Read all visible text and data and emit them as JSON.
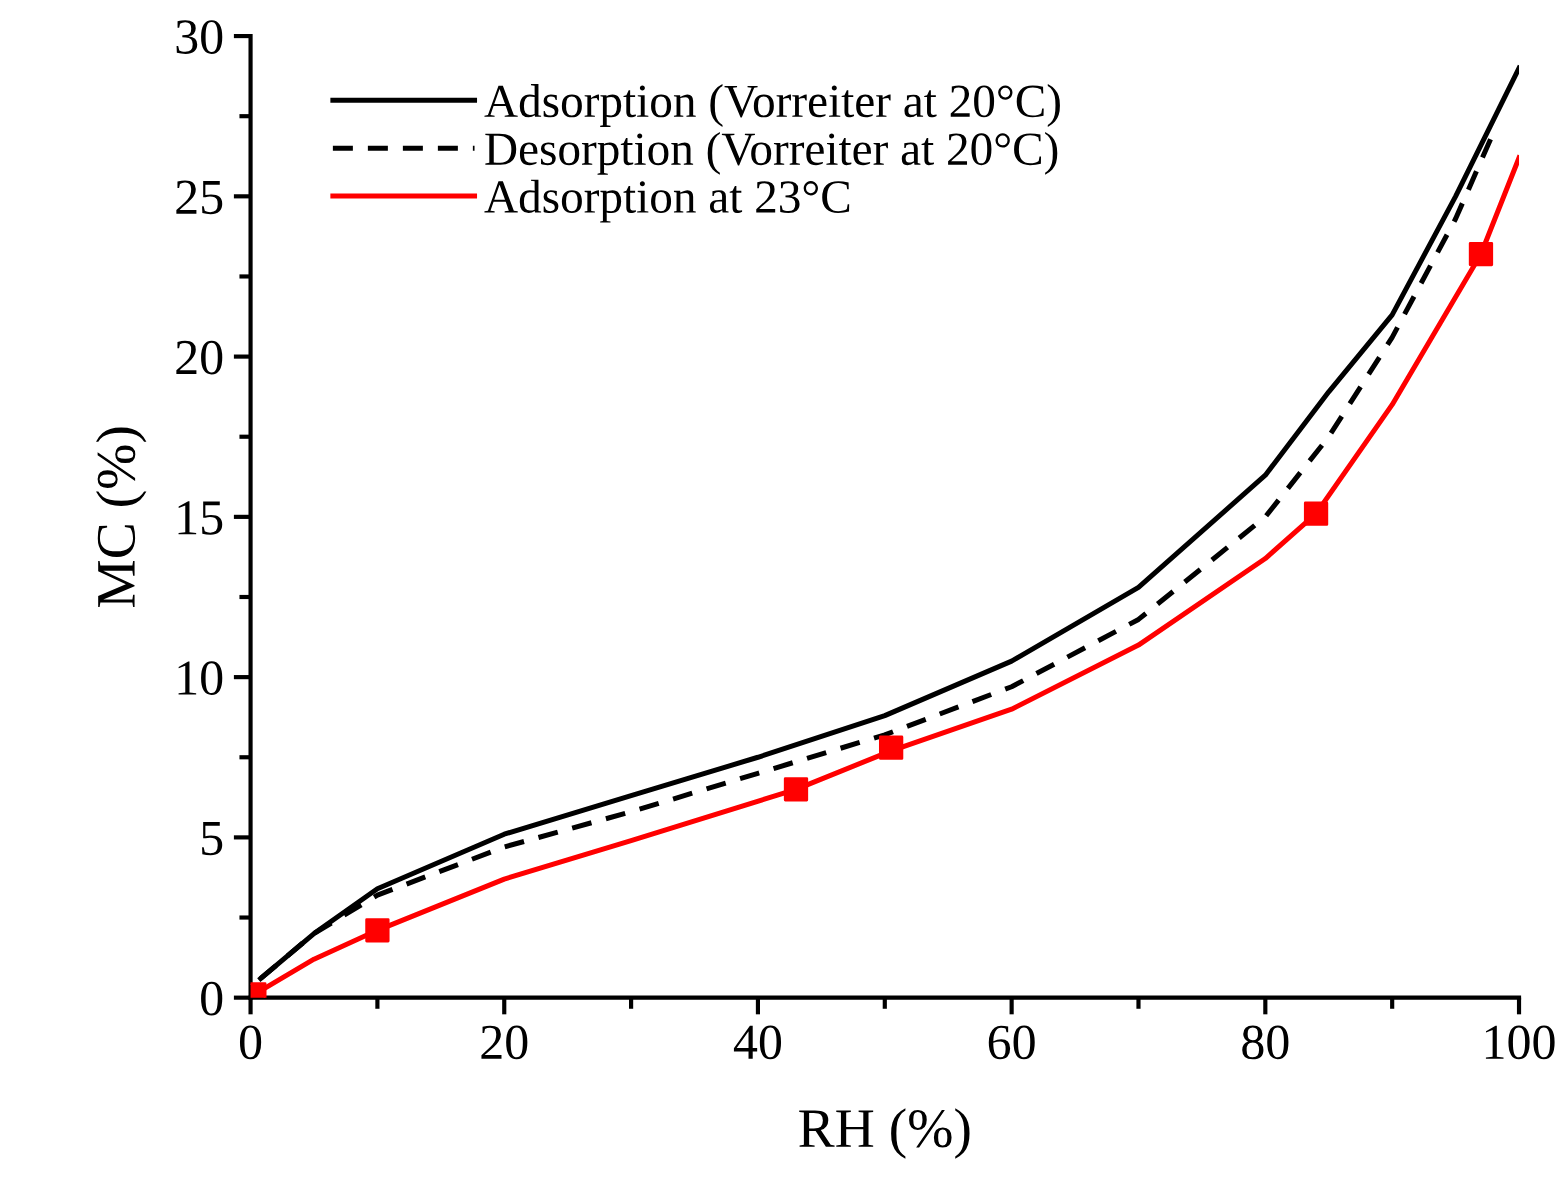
{
  "chart_data": {
    "type": "line",
    "xlabel": "RH (%)",
    "ylabel": "MC (%)",
    "xlim": [
      0,
      100
    ],
    "ylim": [
      0,
      30
    ],
    "xticks": [
      0,
      20,
      40,
      60,
      80,
      100
    ],
    "yticks": [
      0,
      5,
      10,
      15,
      20,
      25,
      30
    ],
    "grid": false,
    "legend": "top left",
    "marker": "none",
    "series": [
      {
        "name": "Adsorption (Vorreiter at 20°C)",
        "color": "#000000",
        "line_style": "solid",
        "x": [
          0.8,
          5,
          10,
          20,
          30,
          40,
          50,
          60,
          70,
          80,
          85,
          90,
          95,
          100
        ],
        "values": [
          0.6,
          2.0,
          3.4,
          5.1,
          6.3,
          7.5,
          8.8,
          10.5,
          12.8,
          16.3,
          18.9,
          21.3,
          25.0,
          29.0
        ]
      },
      {
        "name": "Desorption (Vorreiter at 20°C)",
        "color": "#000000",
        "line_style": "dashed",
        "x": [
          0.8,
          5,
          10,
          20,
          30,
          40,
          50,
          60,
          70,
          80,
          85,
          90,
          95,
          98
        ],
        "values": [
          0.6,
          2.0,
          3.2,
          4.7,
          5.8,
          7.0,
          8.2,
          9.7,
          11.8,
          15.0,
          17.5,
          20.6,
          24.3,
          27.0
        ]
      },
      {
        "name": "Adsorption at 23°C",
        "color": "#ff0000",
        "line_style": "solid",
        "x": [
          0.3,
          5,
          10,
          20,
          30,
          43,
          50.5,
          60,
          70,
          80,
          84,
          90,
          97,
          100
        ],
        "values": [
          0.1,
          1.2,
          2.1,
          3.7,
          4.9,
          6.5,
          7.7,
          9.0,
          11.0,
          13.7,
          15.1,
          18.5,
          23.2,
          26.2
        ]
      },
      {
        "type": "scatter",
        "marker": "square",
        "color": "#ff0000",
        "x": [
          0.3,
          10,
          43,
          50.5,
          84,
          97
        ],
        "values": [
          0.1,
          2.1,
          6.5,
          7.8,
          15.1,
          23.2
        ]
      }
    ]
  }
}
